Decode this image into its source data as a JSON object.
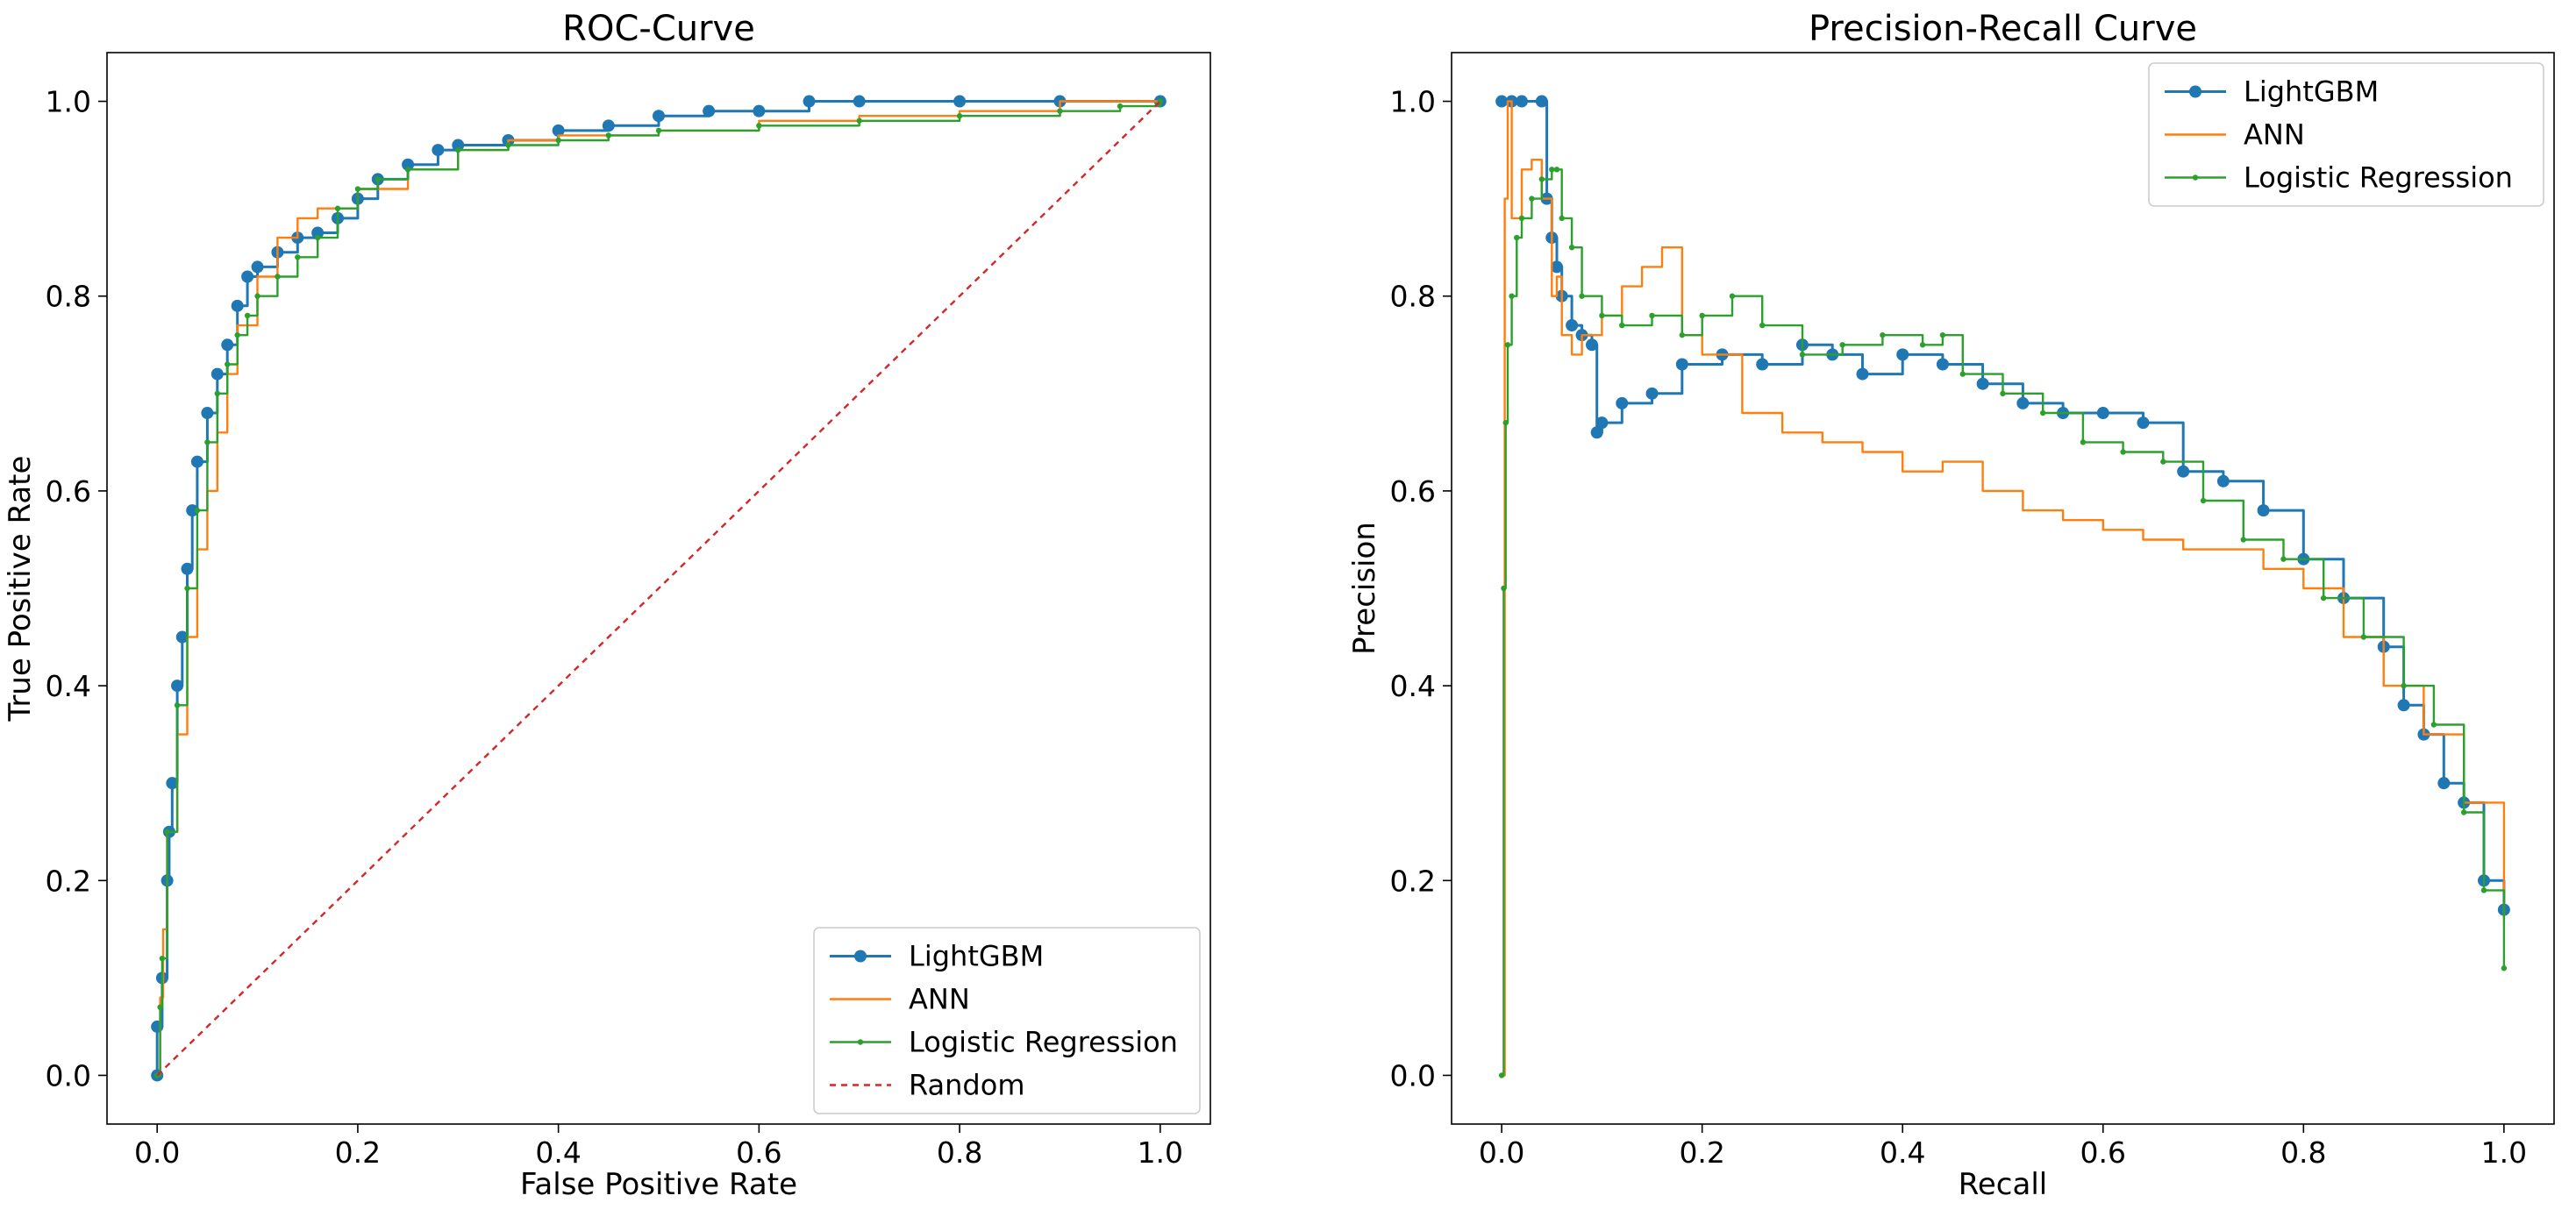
{
  "chart_data": [
    {
      "type": "line",
      "title": "ROC-Curve",
      "xlabel": "False Positive Rate",
      "ylabel": "True Positive Rate",
      "xlim": [
        -0.05,
        1.05
      ],
      "ylim": [
        -0.05,
        1.05
      ],
      "xticks": [
        0.0,
        0.2,
        0.4,
        0.6,
        0.8,
        1.0
      ],
      "yticks": [
        0.0,
        0.2,
        0.4,
        0.6,
        0.8,
        1.0
      ],
      "xtick_labels": [
        "0.0",
        "0.2",
        "0.4",
        "0.6",
        "0.8",
        "1.0"
      ],
      "ytick_labels": [
        "0.0",
        "0.2",
        "0.4",
        "0.6",
        "0.8",
        "1.0"
      ],
      "legend_position": "bottom-right",
      "series": [
        {
          "name": "LightGBM",
          "color": "#1f77b4",
          "style": "solid",
          "marker": "circle",
          "x": [
            0.0,
            0.0,
            0.005,
            0.01,
            0.012,
            0.015,
            0.02,
            0.025,
            0.03,
            0.035,
            0.04,
            0.05,
            0.06,
            0.07,
            0.08,
            0.09,
            0.1,
            0.12,
            0.14,
            0.16,
            0.18,
            0.2,
            0.22,
            0.25,
            0.28,
            0.3,
            0.35,
            0.4,
            0.45,
            0.5,
            0.55,
            0.6,
            0.65,
            0.7,
            0.8,
            0.9,
            1.0
          ],
          "y": [
            0.0,
            0.05,
            0.1,
            0.2,
            0.25,
            0.3,
            0.4,
            0.45,
            0.52,
            0.58,
            0.63,
            0.68,
            0.72,
            0.75,
            0.79,
            0.82,
            0.83,
            0.845,
            0.86,
            0.865,
            0.88,
            0.9,
            0.92,
            0.935,
            0.95,
            0.955,
            0.96,
            0.97,
            0.975,
            0.985,
            0.99,
            0.99,
            1.0,
            1.0,
            1.0,
            1.0,
            1.0
          ]
        },
        {
          "name": "ANN",
          "color": "#ff7f0e",
          "style": "solid",
          "marker": "none",
          "x": [
            0.0,
            0.003,
            0.006,
            0.01,
            0.02,
            0.03,
            0.04,
            0.05,
            0.06,
            0.07,
            0.08,
            0.1,
            0.12,
            0.14,
            0.16,
            0.2,
            0.25,
            0.3,
            0.35,
            0.4,
            0.5,
            0.6,
            0.7,
            0.8,
            0.9,
            1.0
          ],
          "y": [
            0.0,
            0.08,
            0.15,
            0.25,
            0.35,
            0.45,
            0.54,
            0.6,
            0.66,
            0.72,
            0.77,
            0.82,
            0.86,
            0.88,
            0.89,
            0.91,
            0.93,
            0.95,
            0.96,
            0.965,
            0.97,
            0.98,
            0.985,
            0.99,
            1.0,
            1.0
          ]
        },
        {
          "name": "Logistic Regression",
          "color": "#2ca02c",
          "style": "solid",
          "marker": "point",
          "x": [
            0.0,
            0.003,
            0.005,
            0.01,
            0.02,
            0.03,
            0.04,
            0.05,
            0.06,
            0.07,
            0.08,
            0.09,
            0.1,
            0.12,
            0.14,
            0.16,
            0.18,
            0.2,
            0.22,
            0.25,
            0.3,
            0.35,
            0.4,
            0.45,
            0.5,
            0.6,
            0.7,
            0.8,
            0.9,
            0.96,
            1.0
          ],
          "y": [
            0.0,
            0.07,
            0.12,
            0.25,
            0.38,
            0.5,
            0.58,
            0.65,
            0.7,
            0.73,
            0.76,
            0.78,
            0.8,
            0.82,
            0.84,
            0.86,
            0.89,
            0.91,
            0.92,
            0.93,
            0.95,
            0.955,
            0.96,
            0.965,
            0.97,
            0.975,
            0.98,
            0.985,
            0.99,
            0.995,
            1.0
          ]
        },
        {
          "name": "Random",
          "color": "#d62728",
          "style": "dashed",
          "marker": "none",
          "x": [
            0.0,
            1.0
          ],
          "y": [
            0.0,
            1.0
          ]
        }
      ]
    },
    {
      "type": "line",
      "title": "Precision-Recall Curve",
      "xlabel": "Recall",
      "ylabel": "Precision",
      "xlim": [
        -0.05,
        1.05
      ],
      "ylim": [
        -0.05,
        1.05
      ],
      "xticks": [
        0.0,
        0.2,
        0.4,
        0.6,
        0.8,
        1.0
      ],
      "yticks": [
        0.0,
        0.2,
        0.4,
        0.6,
        0.8,
        1.0
      ],
      "xtick_labels": [
        "0.0",
        "0.2",
        "0.4",
        "0.6",
        "0.8",
        "1.0"
      ],
      "ytick_labels": [
        "0.0",
        "0.2",
        "0.4",
        "0.6",
        "0.8",
        "1.0"
      ],
      "legend_position": "top-right",
      "series": [
        {
          "name": "LightGBM",
          "color": "#1f77b4",
          "style": "solid",
          "marker": "circle",
          "x": [
            0.0,
            0.01,
            0.02,
            0.04,
            0.045,
            0.05,
            0.055,
            0.06,
            0.07,
            0.08,
            0.09,
            0.095,
            0.1,
            0.12,
            0.15,
            0.18,
            0.22,
            0.26,
            0.3,
            0.33,
            0.36,
            0.4,
            0.44,
            0.48,
            0.52,
            0.56,
            0.6,
            0.64,
            0.68,
            0.72,
            0.76,
            0.8,
            0.84,
            0.88,
            0.9,
            0.92,
            0.94,
            0.96,
            0.98,
            1.0
          ],
          "y": [
            1.0,
            1.0,
            1.0,
            1.0,
            0.9,
            0.86,
            0.83,
            0.8,
            0.77,
            0.76,
            0.75,
            0.66,
            0.67,
            0.69,
            0.7,
            0.73,
            0.74,
            0.73,
            0.75,
            0.74,
            0.72,
            0.74,
            0.73,
            0.71,
            0.69,
            0.68,
            0.68,
            0.67,
            0.62,
            0.61,
            0.58,
            0.53,
            0.49,
            0.44,
            0.38,
            0.35,
            0.3,
            0.28,
            0.2,
            0.17
          ]
        },
        {
          "name": "ANN",
          "color": "#ff7f0e",
          "style": "solid",
          "marker": "none",
          "x": [
            0.0,
            0.003,
            0.006,
            0.01,
            0.02,
            0.03,
            0.04,
            0.05,
            0.055,
            0.06,
            0.07,
            0.08,
            0.1,
            0.12,
            0.14,
            0.16,
            0.18,
            0.2,
            0.24,
            0.28,
            0.32,
            0.36,
            0.4,
            0.44,
            0.48,
            0.52,
            0.56,
            0.6,
            0.64,
            0.68,
            0.72,
            0.76,
            0.8,
            0.84,
            0.88,
            0.92,
            0.96,
            1.0
          ],
          "y": [
            0.0,
            0.9,
            1.0,
            0.88,
            0.93,
            0.94,
            0.9,
            0.8,
            0.82,
            0.76,
            0.74,
            0.76,
            0.78,
            0.81,
            0.83,
            0.85,
            0.76,
            0.74,
            0.68,
            0.66,
            0.65,
            0.64,
            0.62,
            0.63,
            0.6,
            0.58,
            0.57,
            0.56,
            0.55,
            0.54,
            0.54,
            0.52,
            0.5,
            0.45,
            0.4,
            0.35,
            0.28,
            0.16
          ]
        },
        {
          "name": "Logistic Regression",
          "color": "#2ca02c",
          "style": "solid",
          "marker": "point",
          "x": [
            0.0,
            0.002,
            0.004,
            0.006,
            0.01,
            0.015,
            0.02,
            0.03,
            0.04,
            0.05,
            0.055,
            0.06,
            0.07,
            0.08,
            0.1,
            0.12,
            0.15,
            0.18,
            0.2,
            0.23,
            0.26,
            0.3,
            0.34,
            0.38,
            0.42,
            0.44,
            0.46,
            0.5,
            0.54,
            0.58,
            0.62,
            0.66,
            0.7,
            0.74,
            0.78,
            0.82,
            0.86,
            0.9,
            0.93,
            0.96,
            0.98,
            1.0
          ],
          "y": [
            0.0,
            0.5,
            0.67,
            0.75,
            0.8,
            0.86,
            0.88,
            0.9,
            0.92,
            0.93,
            0.93,
            0.88,
            0.85,
            0.8,
            0.78,
            0.77,
            0.78,
            0.76,
            0.78,
            0.8,
            0.77,
            0.74,
            0.75,
            0.76,
            0.75,
            0.76,
            0.72,
            0.7,
            0.68,
            0.65,
            0.64,
            0.63,
            0.59,
            0.55,
            0.53,
            0.49,
            0.45,
            0.4,
            0.36,
            0.27,
            0.19,
            0.11
          ]
        }
      ]
    }
  ]
}
